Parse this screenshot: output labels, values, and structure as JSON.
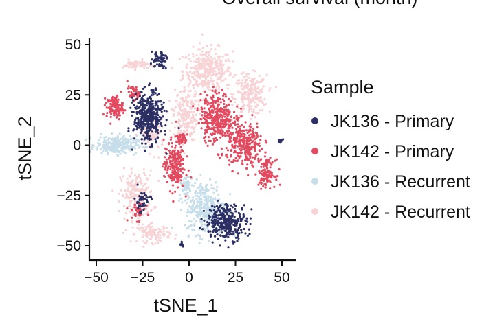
{
  "chart_data": {
    "type": "scatter",
    "title": "Overall survival (month)",
    "xlabel": "tSNE_1",
    "ylabel": "tSNE_2",
    "xlim": [
      -52,
      54
    ],
    "ylim": [
      -54,
      54
    ],
    "xticks": [
      -50,
      -25,
      0,
      25,
      50
    ],
    "yticks": [
      50,
      25,
      0,
      -25,
      -50
    ],
    "xtick_labels": [
      "−50",
      "−25",
      "0",
      "25",
      "50"
    ],
    "ytick_labels": [
      "50",
      "25",
      "0",
      "−25",
      "−50"
    ],
    "grid": false,
    "legend": {
      "title": "Sample",
      "position": "right"
    },
    "series": [
      {
        "name": "JK136 - Primary",
        "color": "#2b2f63",
        "clusters": [
          {
            "cx": -22,
            "cy": 14,
            "rx": 7,
            "ry": 11,
            "n": 420
          },
          {
            "cx": 20,
            "cy": -38,
            "rx": 10,
            "ry": 8,
            "n": 330
          },
          {
            "cx": -16,
            "cy": 43,
            "rx": 4,
            "ry": 4,
            "n": 60
          },
          {
            "cx": -25,
            "cy": -28,
            "rx": 4,
            "ry": 5,
            "n": 45
          },
          {
            "cx": 49,
            "cy": 2,
            "rx": 1.2,
            "ry": 1.2,
            "n": 12
          },
          {
            "cx": -4,
            "cy": -49,
            "rx": 1,
            "ry": 1.5,
            "n": 8
          }
        ]
      },
      {
        "name": "JK142 - Primary",
        "color": "#e34a5f",
        "clusters": [
          {
            "cx": -40,
            "cy": 19,
            "rx": 4,
            "ry": 5,
            "n": 120
          },
          {
            "cx": -30,
            "cy": 26,
            "rx": 3,
            "ry": 3,
            "n": 45
          },
          {
            "cx": -8,
            "cy": -10,
            "rx": 5,
            "ry": 11,
            "n": 220
          },
          {
            "cx": 15,
            "cy": 14,
            "rx": 8,
            "ry": 11,
            "n": 360
          },
          {
            "cx": 30,
            "cy": 0,
            "rx": 9,
            "ry": 10,
            "n": 300
          },
          {
            "cx": 42,
            "cy": -14,
            "rx": 4,
            "ry": 6,
            "n": 120
          },
          {
            "cx": -28,
            "cy": -33,
            "rx": 4,
            "ry": 4,
            "n": 40
          },
          {
            "cx": -4,
            "cy": 3,
            "rx": 3,
            "ry": 3,
            "n": 40
          }
        ]
      },
      {
        "name": "JK136 - Recurrent",
        "color": "#c6ddea",
        "clusters": [
          {
            "cx": -39,
            "cy": 0,
            "rx": 10,
            "ry": 4,
            "n": 260
          },
          {
            "cx": 9,
            "cy": -31,
            "rx": 10,
            "ry": 12,
            "n": 330
          },
          {
            "cx": -2,
            "cy": -20,
            "rx": 3,
            "ry": 5,
            "n": 50
          }
        ]
      },
      {
        "name": "JK142 - Recurrent",
        "color": "#f8d3d6",
        "clusters": [
          {
            "cx": 10,
            "cy": 37,
            "rx": 12,
            "ry": 10,
            "n": 380
          },
          {
            "cx": 33,
            "cy": 25,
            "rx": 8,
            "ry": 9,
            "n": 240
          },
          {
            "cx": -2,
            "cy": 15,
            "rx": 6,
            "ry": 12,
            "n": 220
          },
          {
            "cx": -28,
            "cy": -25,
            "rx": 8,
            "ry": 11,
            "n": 220
          },
          {
            "cx": -19,
            "cy": -44,
            "rx": 8,
            "ry": 4,
            "n": 110
          },
          {
            "cx": -29,
            "cy": 40,
            "rx": 6,
            "ry": 2,
            "n": 60
          },
          {
            "cx": -20,
            "cy": 5,
            "rx": 6,
            "ry": 8,
            "n": 90
          }
        ]
      }
    ]
  }
}
